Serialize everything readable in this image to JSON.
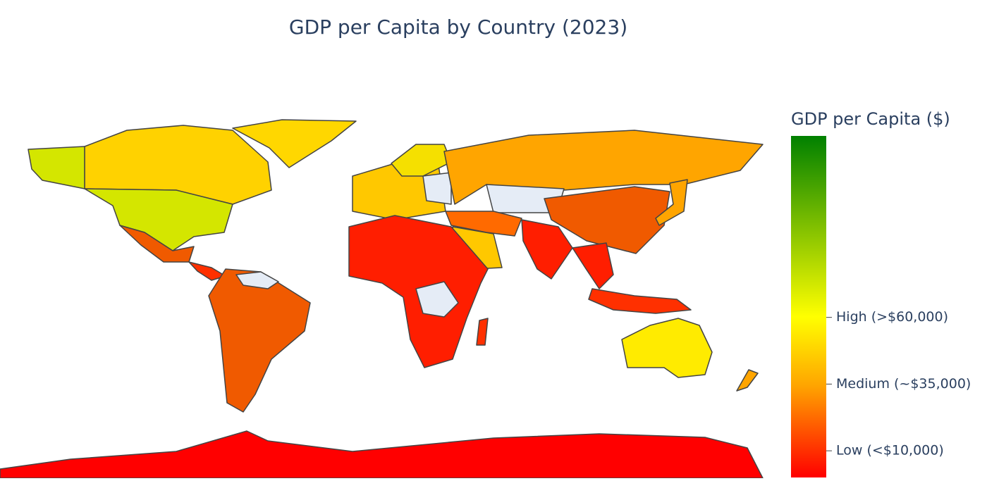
{
  "chart_data": {
    "type": "choropleth",
    "title": "GDP per Capita by Country (2023)",
    "colorbar": {
      "title": "GDP per Capita ($)",
      "range": [
        0,
        128000
      ],
      "ticks": [
        {
          "value": 10000,
          "label": "Low (<$10,000)"
        },
        {
          "value": 35000,
          "label": "Medium (~$35,000)"
        },
        {
          "value": 60000,
          "label": "High (>$60,000)"
        }
      ],
      "colorscale": [
        [
          0,
          "#ff0000"
        ],
        [
          0.27,
          "#ffa500"
        ],
        [
          0.47,
          "#ffff00"
        ],
        [
          1,
          "#008000"
        ]
      ]
    }
  }
}
